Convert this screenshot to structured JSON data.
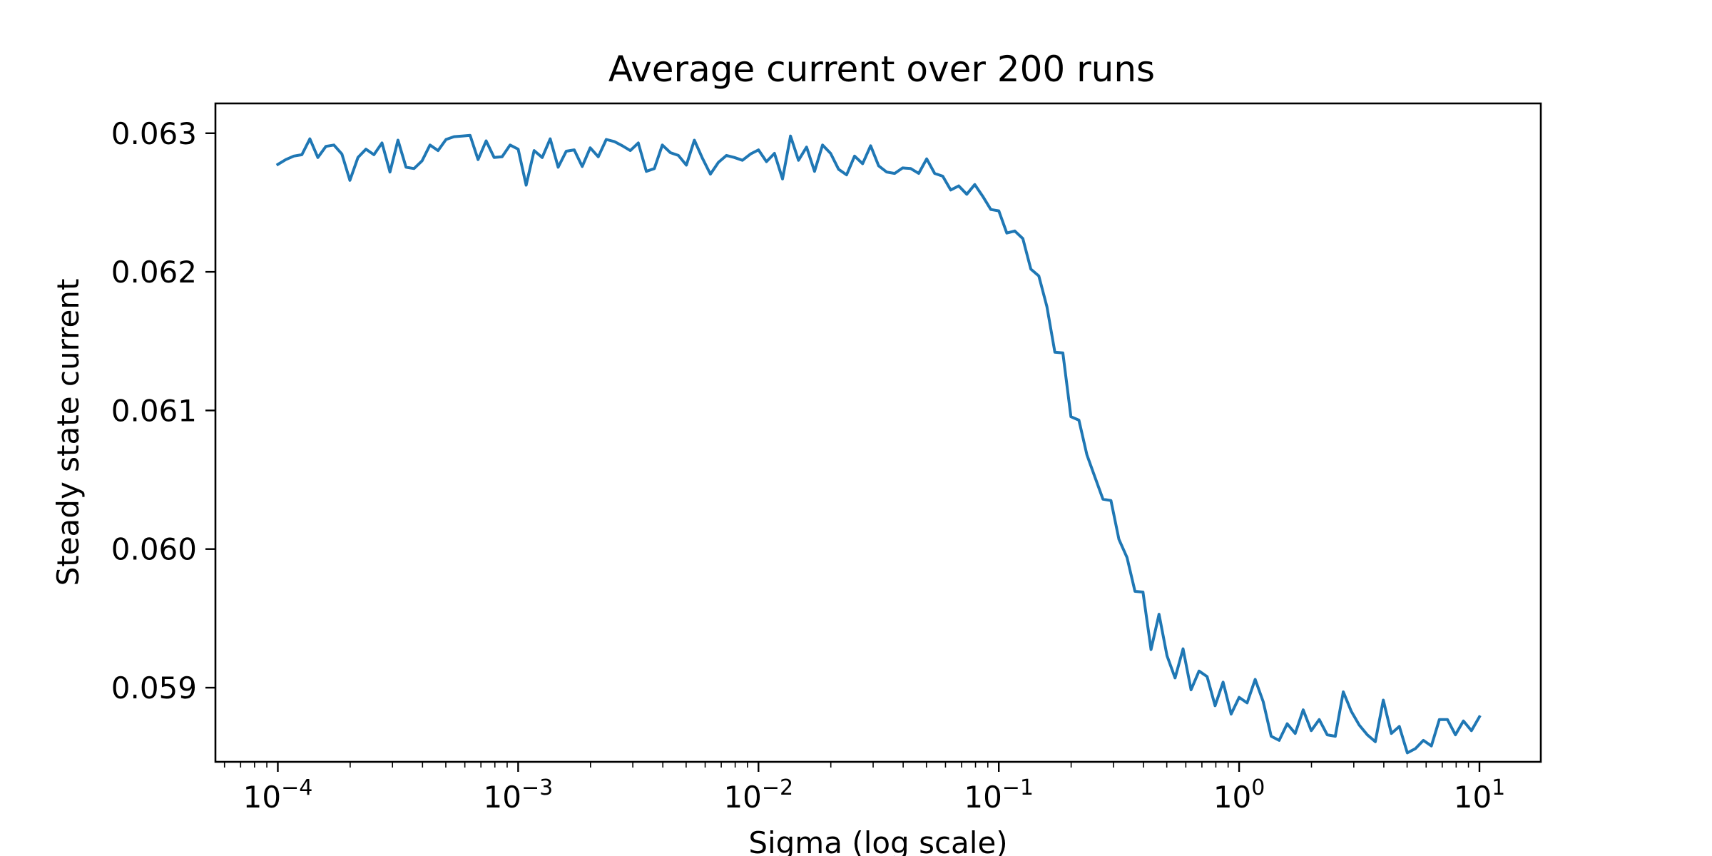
{
  "chart_data": {
    "type": "line",
    "title": "Average current over 200 runs",
    "xlabel": "Sigma (log scale)",
    "ylabel": "Steady state current",
    "xscale": "log",
    "xlim": [
      5.5e-05,
      18
    ],
    "ylim": [
      0.058465,
      0.063215
    ],
    "grid": false,
    "xticks": [
      {
        "value": 0.0001,
        "base": "10",
        "exp": "−4"
      },
      {
        "value": 0.001,
        "base": "10",
        "exp": "−3"
      },
      {
        "value": 0.01,
        "base": "10",
        "exp": "−2"
      },
      {
        "value": 0.1,
        "base": "10",
        "exp": "−1"
      },
      {
        "value": 1,
        "base": "10",
        "exp": "0"
      },
      {
        "value": 10,
        "base": "10",
        "exp": "1"
      }
    ],
    "yticks": [
      {
        "value": 0.059,
        "label": "0.059"
      },
      {
        "value": 0.06,
        "label": "0.060"
      },
      {
        "value": 0.061,
        "label": "0.061"
      },
      {
        "value": 0.062,
        "label": "0.062"
      },
      {
        "value": 0.063,
        "label": "0.063"
      }
    ],
    "series": [
      {
        "color": "#1f77b4",
        "x_range": [
          0.0001,
          10
        ],
        "values": [
          0.062775,
          0.06281,
          0.062835,
          0.062845,
          0.06296,
          0.062825,
          0.062905,
          0.062915,
          0.06285,
          0.06266,
          0.062825,
          0.062885,
          0.062845,
          0.06293,
          0.06272,
          0.06295,
          0.062755,
          0.062745,
          0.0628,
          0.062915,
          0.062875,
          0.062955,
          0.062975,
          0.06298,
          0.062985,
          0.06281,
          0.062945,
          0.062825,
          0.06283,
          0.062915,
          0.062885,
          0.062625,
          0.062875,
          0.062825,
          0.06296,
          0.062755,
          0.06287,
          0.06288,
          0.06276,
          0.062895,
          0.06283,
          0.062955,
          0.06294,
          0.06291,
          0.062875,
          0.06293,
          0.062725,
          0.062745,
          0.062915,
          0.06286,
          0.06284,
          0.06277,
          0.06295,
          0.06282,
          0.062705,
          0.06279,
          0.06284,
          0.062825,
          0.062805,
          0.06285,
          0.06288,
          0.062795,
          0.062855,
          0.06267,
          0.06298,
          0.062805,
          0.0629,
          0.062725,
          0.062915,
          0.062855,
          0.06274,
          0.0627,
          0.062835,
          0.06278,
          0.06291,
          0.062765,
          0.06272,
          0.06271,
          0.06275,
          0.062745,
          0.06271,
          0.062815,
          0.06271,
          0.06269,
          0.06259,
          0.06262,
          0.06256,
          0.06263,
          0.062545,
          0.06245,
          0.06244,
          0.06228,
          0.062295,
          0.06224,
          0.06202,
          0.06197,
          0.06175,
          0.06142,
          0.061415,
          0.060955,
          0.06093,
          0.06068,
          0.06052,
          0.06036,
          0.06035,
          0.06007,
          0.05994,
          0.059695,
          0.05969,
          0.059275,
          0.05953,
          0.05923,
          0.05907,
          0.05928,
          0.058985,
          0.05912,
          0.05908,
          0.05887,
          0.05904,
          0.05881,
          0.05893,
          0.05889,
          0.05906,
          0.0589,
          0.05865,
          0.05862,
          0.05874,
          0.05867,
          0.05884,
          0.05869,
          0.05877,
          0.05866,
          0.05865,
          0.05897,
          0.05883,
          0.05873,
          0.05866,
          0.05861,
          0.05891,
          0.05867,
          0.05872,
          0.05853,
          0.05856,
          0.05862,
          0.05858,
          0.05877,
          0.05877,
          0.05866,
          0.05876,
          0.05869,
          0.05879
        ]
      }
    ]
  }
}
